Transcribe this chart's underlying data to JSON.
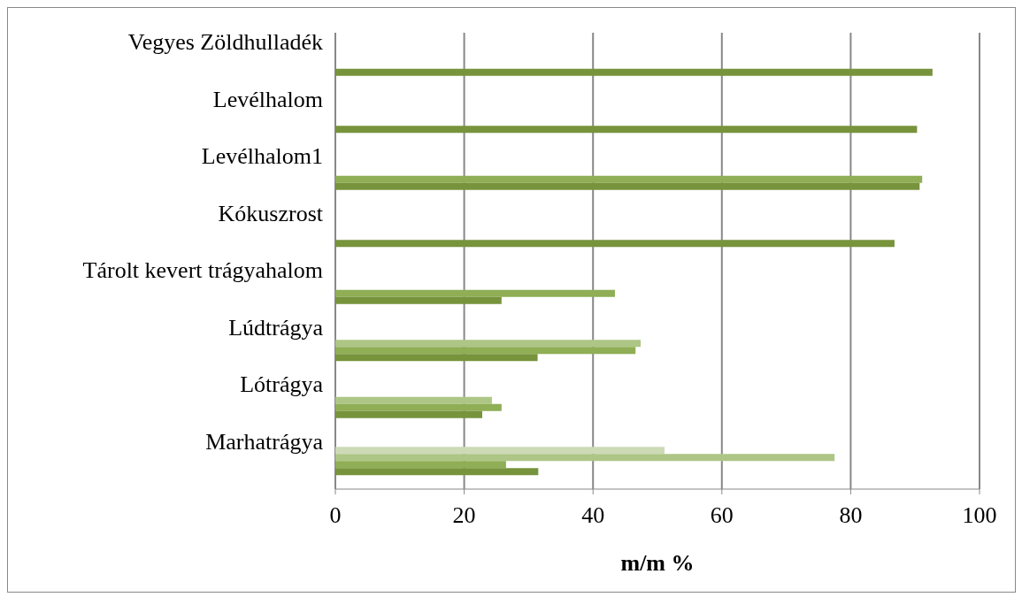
{
  "chart_data": {
    "type": "bar",
    "orientation": "horizontal",
    "xlabel": "m/m %",
    "categories": [
      "Vegyes Zöldhulladék",
      "Levélhalom",
      "Levélhalom1",
      "Kókuszrost",
      "Tárolt kevert trágyahalom",
      "Lúdtrágya",
      "Lótrágya",
      "Marhatrágya"
    ],
    "series": [
      {
        "color": "#77933c",
        "values": [
          92.7,
          90.3,
          90.7,
          86.8,
          25.8,
          31.4,
          22.8,
          31.5
        ]
      },
      {
        "color": "#8fae55",
        "values": [
          null,
          null,
          91.1,
          null,
          43.4,
          46.6,
          25.8,
          26.5
        ]
      },
      {
        "color": "#adc686",
        "values": [
          null,
          null,
          null,
          null,
          null,
          47.4,
          24.3,
          77.5
        ]
      },
      {
        "color": "#cddab6",
        "values": [
          null,
          null,
          null,
          null,
          null,
          null,
          null,
          51.1
        ]
      }
    ],
    "xlim": [
      0,
      100
    ],
    "xticks": [
      0,
      20,
      40,
      60,
      80,
      100
    ],
    "grid": "x"
  }
}
